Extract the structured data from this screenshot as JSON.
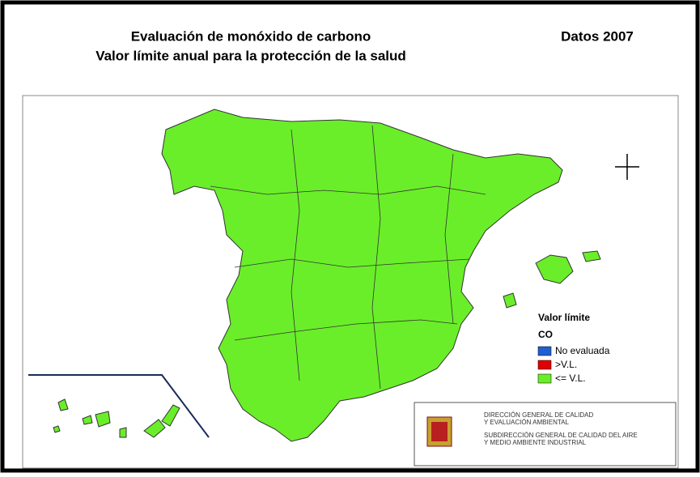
{
  "header": {
    "title": [
      "Evaluación de monóxido de carbono",
      "Valor límite anual para la protección de la salud"
    ],
    "date": "Datos 2007"
  },
  "legend": {
    "title": "Valor límite",
    "pollutant": "CO",
    "items": [
      {
        "label": "No evaluada",
        "color": "#1f5fd0"
      },
      {
        "label": ">V.L.",
        "color": "#e00000"
      },
      {
        "label": "<= V.L.",
        "color": "#6aee2a"
      }
    ]
  },
  "footer": {
    "lines": [
      "DIRECCIÓN GENERAL DE CALIDAD",
      "Y EVALUACIÓN AMBIENTAL",
      "SUBDIRECCIÓN GENERAL DE CALIDAD DEL AIRE",
      "Y MEDIO AMBIENTE INDUSTRIAL"
    ]
  }
}
